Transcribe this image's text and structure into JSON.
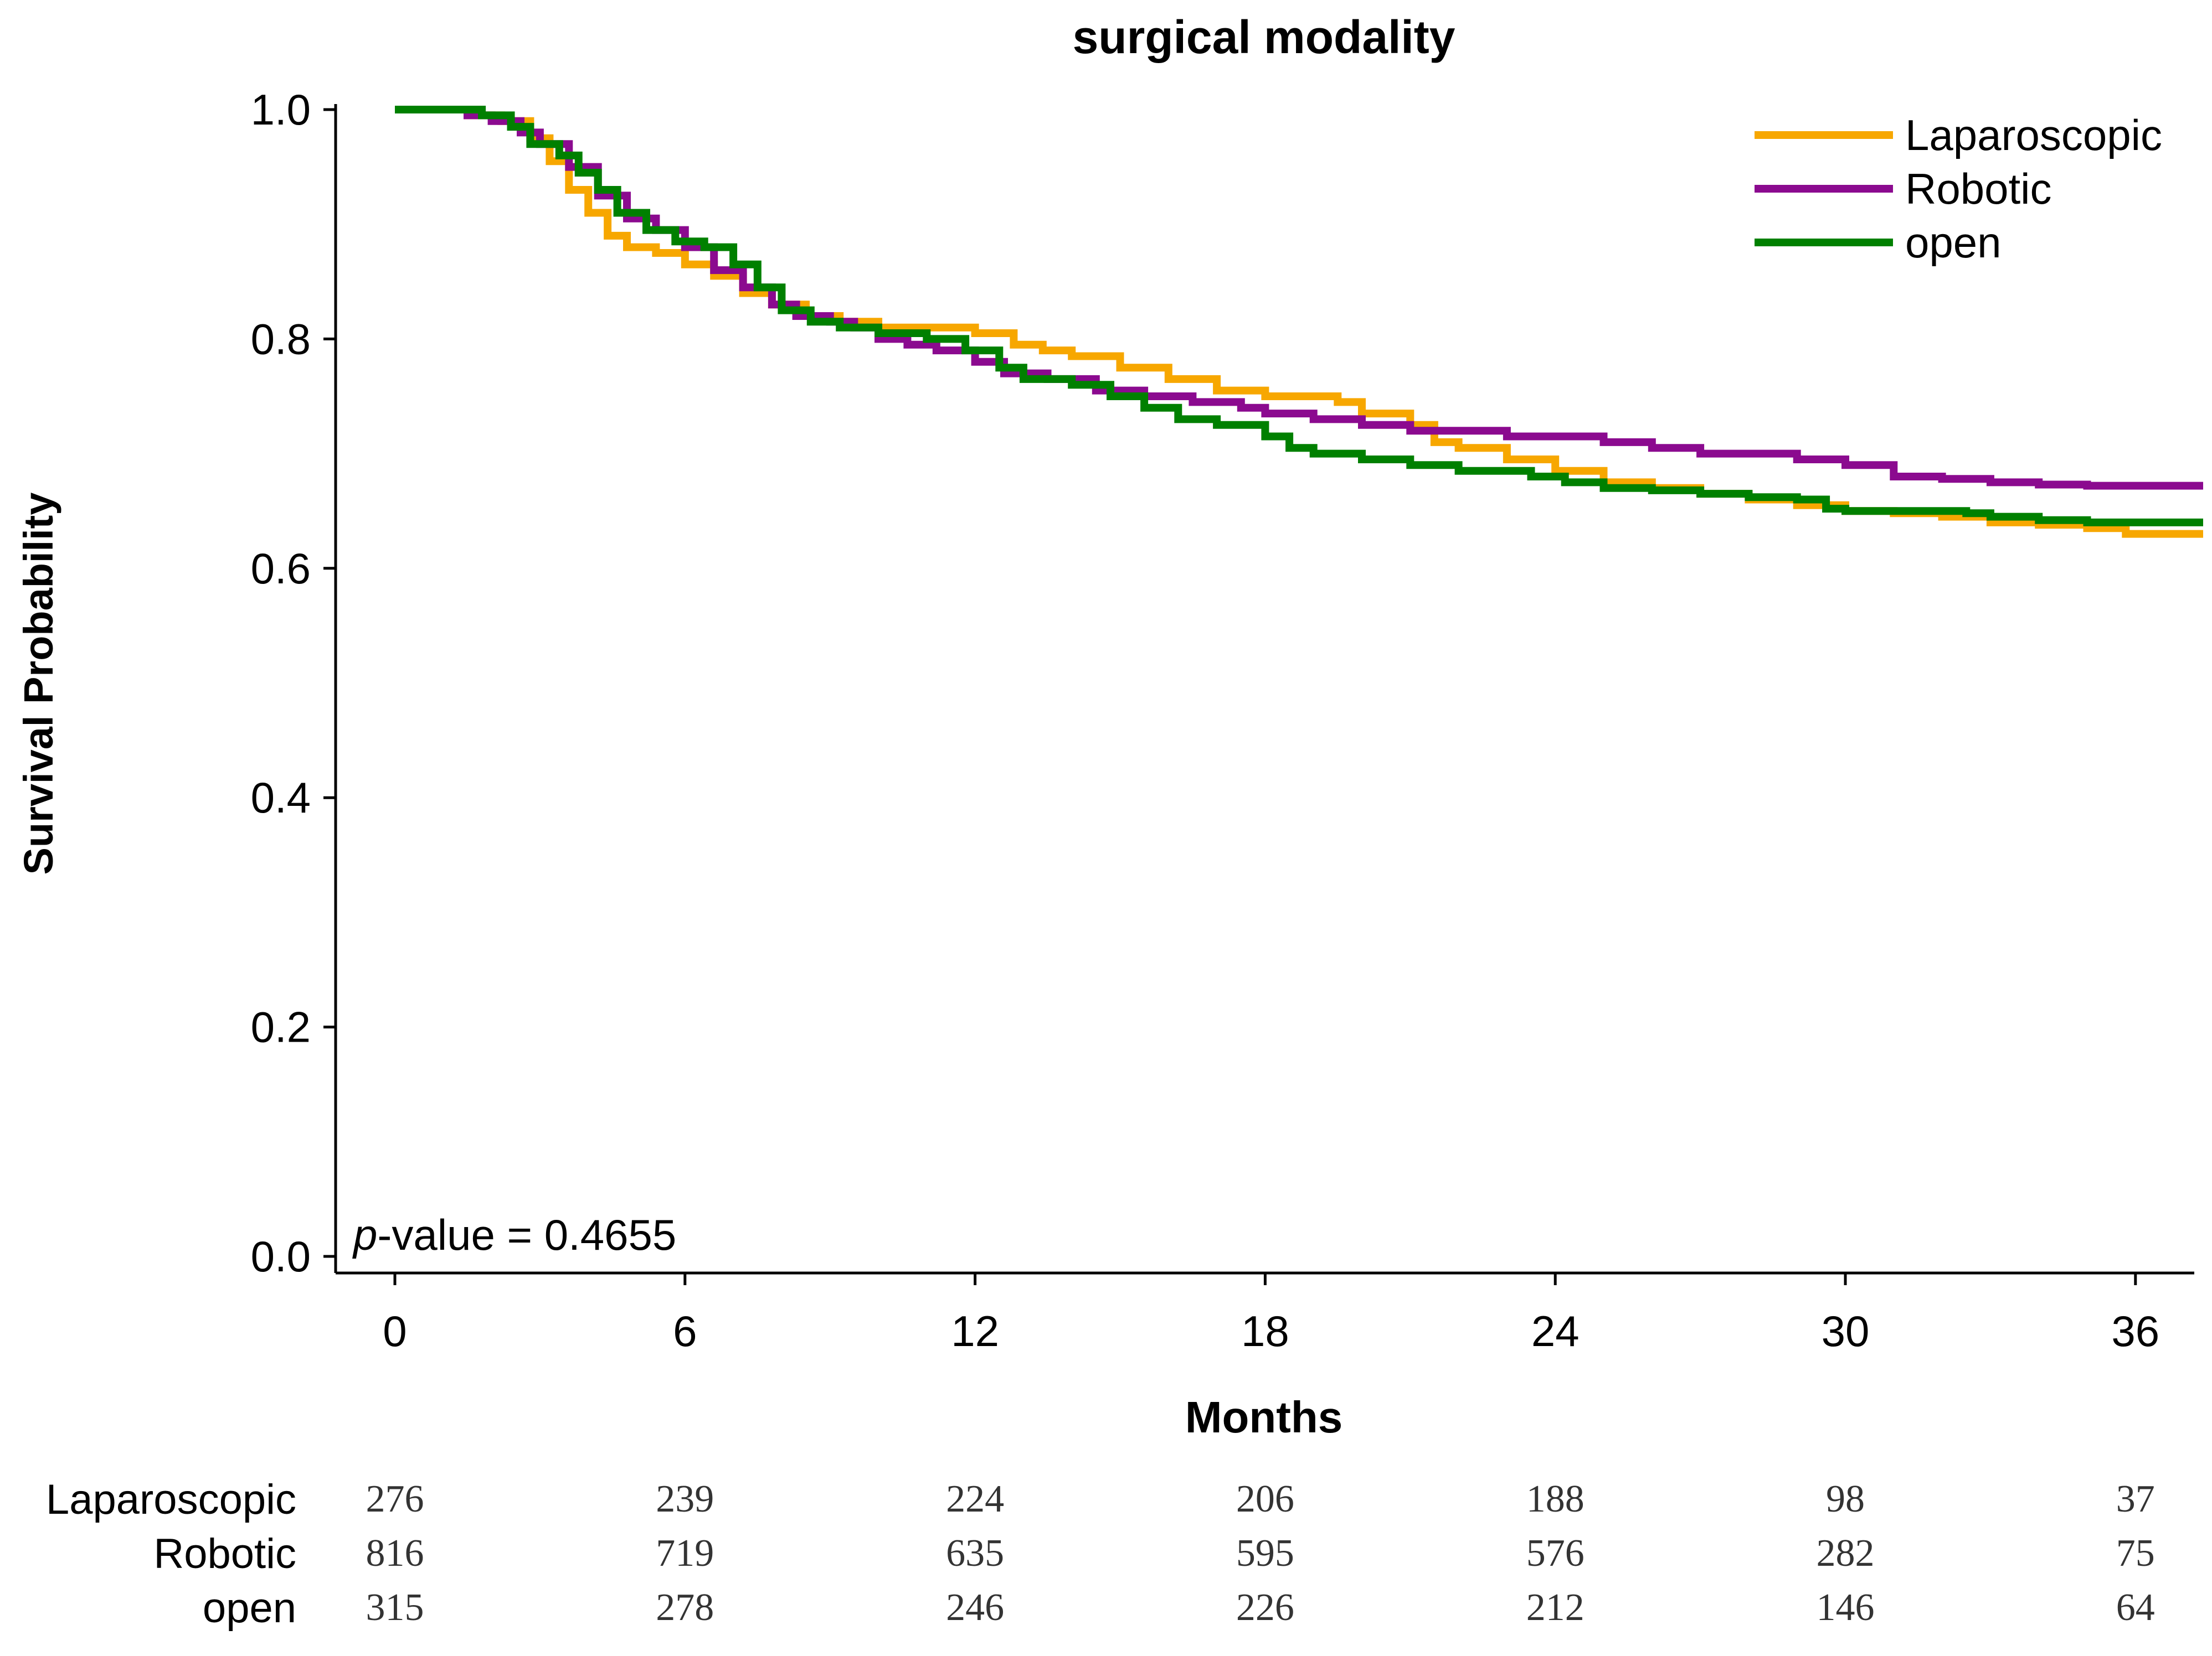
{
  "chart_data": {
    "type": "line",
    "subtype": "kaplan-meier",
    "title": "surgical modality",
    "xlabel": "Months",
    "ylabel": "Survival Probability",
    "xlim": [
      -1.1,
      37.4
    ],
    "ylim": [
      0,
      1.0
    ],
    "xticks": [
      "0",
      "6",
      "12",
      "18",
      "24",
      "30",
      "36"
    ],
    "yticks": [
      "0.0",
      "0.2",
      "0.4",
      "0.6",
      "0.8",
      "1.0"
    ],
    "grid": false,
    "legend_position": "top-right",
    "annotation": {
      "italic": "p",
      "rest": "-value = 0.4655"
    },
    "series": [
      {
        "name": "Laparoscopic",
        "color": "#F7A700",
        "points": [
          [
            0,
            1.0
          ],
          [
            1.5,
            0.995
          ],
          [
            2.2,
            0.99
          ],
          [
            2.8,
            0.975
          ],
          [
            3.2,
            0.955
          ],
          [
            3.6,
            0.93
          ],
          [
            4.0,
            0.91
          ],
          [
            4.4,
            0.89
          ],
          [
            4.8,
            0.88
          ],
          [
            5.4,
            0.875
          ],
          [
            6.0,
            0.865
          ],
          [
            6.6,
            0.855
          ],
          [
            7.2,
            0.84
          ],
          [
            7.8,
            0.83
          ],
          [
            8.5,
            0.82
          ],
          [
            9.2,
            0.815
          ],
          [
            10.0,
            0.81
          ],
          [
            11.0,
            0.81
          ],
          [
            12.0,
            0.805
          ],
          [
            12.8,
            0.795
          ],
          [
            13.4,
            0.79
          ],
          [
            14.0,
            0.785
          ],
          [
            15.0,
            0.775
          ],
          [
            16.0,
            0.765
          ],
          [
            17.0,
            0.755
          ],
          [
            18.0,
            0.75
          ],
          [
            19.5,
            0.745
          ],
          [
            20.0,
            0.735
          ],
          [
            21.0,
            0.725
          ],
          [
            21.5,
            0.71
          ],
          [
            22.0,
            0.705
          ],
          [
            23.0,
            0.695
          ],
          [
            24.0,
            0.685
          ],
          [
            25.0,
            0.675
          ],
          [
            26.0,
            0.67
          ],
          [
            27.0,
            0.665
          ],
          [
            28.0,
            0.66
          ],
          [
            29.0,
            0.655
          ],
          [
            30.0,
            0.65
          ],
          [
            31.0,
            0.648
          ],
          [
            32.0,
            0.645
          ],
          [
            33.0,
            0.64
          ],
          [
            34.0,
            0.638
          ],
          [
            35.0,
            0.635
          ],
          [
            35.8,
            0.63
          ],
          [
            37.4,
            0.63
          ]
        ]
      },
      {
        "name": "Robotic",
        "color": "#8B0A8F",
        "points": [
          [
            0,
            1.0
          ],
          [
            1.5,
            0.995
          ],
          [
            2.0,
            0.99
          ],
          [
            2.6,
            0.98
          ],
          [
            3.0,
            0.97
          ],
          [
            3.6,
            0.95
          ],
          [
            4.2,
            0.925
          ],
          [
            4.8,
            0.905
          ],
          [
            5.4,
            0.895
          ],
          [
            6.0,
            0.88
          ],
          [
            6.6,
            0.86
          ],
          [
            7.2,
            0.845
          ],
          [
            7.8,
            0.83
          ],
          [
            8.3,
            0.82
          ],
          [
            9.0,
            0.815
          ],
          [
            9.5,
            0.81
          ],
          [
            10.0,
            0.8
          ],
          [
            10.6,
            0.795
          ],
          [
            11.2,
            0.79
          ],
          [
            12.0,
            0.78
          ],
          [
            12.6,
            0.77
          ],
          [
            13.5,
            0.765
          ],
          [
            14.5,
            0.755
          ],
          [
            15.5,
            0.75
          ],
          [
            16.5,
            0.745
          ],
          [
            17.5,
            0.74
          ],
          [
            18.0,
            0.735
          ],
          [
            19.0,
            0.73
          ],
          [
            20.0,
            0.725
          ],
          [
            21.0,
            0.72
          ],
          [
            22.0,
            0.72
          ],
          [
            23.0,
            0.715
          ],
          [
            24.0,
            0.715
          ],
          [
            25.0,
            0.71
          ],
          [
            26.0,
            0.705
          ],
          [
            27.0,
            0.7
          ],
          [
            28.0,
            0.7
          ],
          [
            29.0,
            0.695
          ],
          [
            30.0,
            0.69
          ],
          [
            31.0,
            0.68
          ],
          [
            32.0,
            0.678
          ],
          [
            33.0,
            0.675
          ],
          [
            34.0,
            0.673
          ],
          [
            35.0,
            0.672
          ],
          [
            37.4,
            0.672
          ]
        ]
      },
      {
        "name": "open",
        "color": "#008000",
        "points": [
          [
            0,
            1.0
          ],
          [
            1.8,
            0.995
          ],
          [
            2.4,
            0.985
          ],
          [
            2.8,
            0.97
          ],
          [
            3.4,
            0.96
          ],
          [
            3.8,
            0.945
          ],
          [
            4.2,
            0.93
          ],
          [
            4.6,
            0.91
          ],
          [
            5.2,
            0.895
          ],
          [
            5.8,
            0.885
          ],
          [
            6.4,
            0.88
          ],
          [
            7.0,
            0.865
          ],
          [
            7.5,
            0.845
          ],
          [
            8.0,
            0.825
          ],
          [
            8.6,
            0.815
          ],
          [
            9.2,
            0.81
          ],
          [
            10.0,
            0.805
          ],
          [
            11.0,
            0.8
          ],
          [
            11.8,
            0.79
          ],
          [
            12.5,
            0.775
          ],
          [
            13.0,
            0.765
          ],
          [
            14.0,
            0.76
          ],
          [
            14.8,
            0.75
          ],
          [
            15.5,
            0.74
          ],
          [
            16.2,
            0.73
          ],
          [
            17.0,
            0.725
          ],
          [
            18.0,
            0.715
          ],
          [
            18.5,
            0.705
          ],
          [
            19.0,
            0.7
          ],
          [
            20.0,
            0.695
          ],
          [
            21.0,
            0.69
          ],
          [
            22.0,
            0.685
          ],
          [
            23.0,
            0.685
          ],
          [
            23.5,
            0.68
          ],
          [
            24.2,
            0.675
          ],
          [
            25.0,
            0.67
          ],
          [
            26.0,
            0.668
          ],
          [
            27.0,
            0.665
          ],
          [
            28.0,
            0.662
          ],
          [
            29.0,
            0.66
          ],
          [
            29.6,
            0.652
          ],
          [
            30.0,
            0.65
          ],
          [
            31.0,
            0.65
          ],
          [
            32.5,
            0.648
          ],
          [
            33.0,
            0.645
          ],
          [
            34.0,
            0.642
          ],
          [
            35.0,
            0.64
          ],
          [
            37.4,
            0.64
          ]
        ]
      }
    ],
    "risk_table": {
      "times": [
        0,
        6,
        12,
        18,
        24,
        30,
        36
      ],
      "rows": [
        {
          "name": "Laparoscopic",
          "values": [
            "276",
            "239",
            "224",
            "206",
            "188",
            "98",
            "37"
          ]
        },
        {
          "name": "Robotic",
          "values": [
            "816",
            "719",
            "635",
            "595",
            "576",
            "282",
            "75"
          ]
        },
        {
          "name": "open",
          "values": [
            "315",
            "278",
            "246",
            "226",
            "212",
            "146",
            "64"
          ]
        }
      ]
    }
  }
}
